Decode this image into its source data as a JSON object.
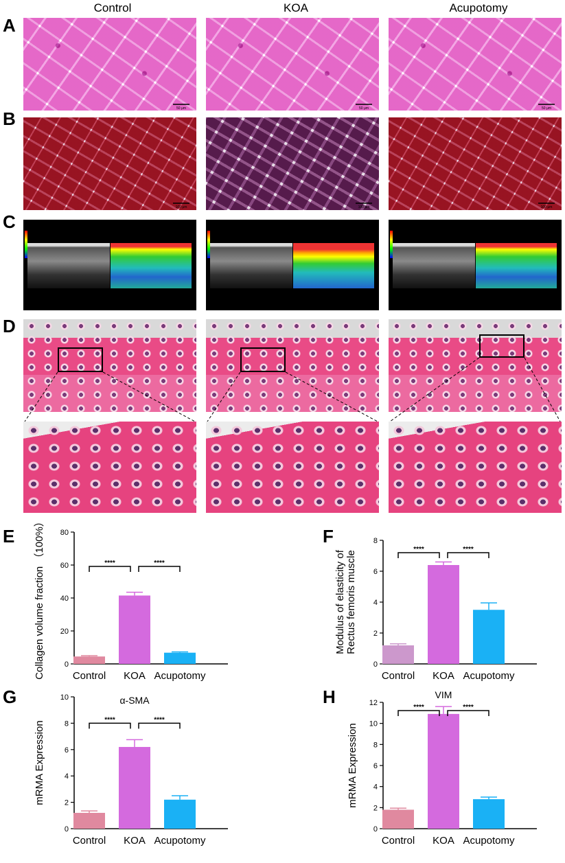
{
  "columns": [
    "Control",
    "KOA",
    "Acupotomy"
  ],
  "panels": [
    "A",
    "B",
    "C",
    "D",
    "E",
    "F",
    "G",
    "H"
  ],
  "scale_labels": {
    "a": "50 μm",
    "b": "100 μm"
  },
  "chart_data": [
    {
      "panel": "E",
      "type": "bar",
      "title": "",
      "categories": [
        "Control",
        "KOA",
        "Acupotomy"
      ],
      "values": [
        4.5,
        41.5,
        6.8
      ],
      "errors": [
        0.5,
        2.0,
        0.5
      ],
      "ylabel": "Collagen volume fraction （100%）",
      "ylim": [
        0,
        80
      ],
      "yticks": [
        0,
        20,
        40,
        60,
        80
      ],
      "colors": [
        "#e0899f",
        "#d46ade",
        "#1ab1f5"
      ],
      "significance": [
        "****",
        "****"
      ]
    },
    {
      "panel": "F",
      "type": "bar",
      "title": "",
      "categories": [
        "Control",
        "KOA",
        "Acupotomy"
      ],
      "values": [
        1.2,
        6.4,
        3.5
      ],
      "errors": [
        0.1,
        0.2,
        0.45
      ],
      "ylabel": "Modulus of elasticity of Rectus femoris muscle",
      "ylabel_lines": [
        "Modulus of elasticity of",
        "Rectus femoris muscle"
      ],
      "ylim": [
        0,
        8
      ],
      "yticks": [
        0,
        2,
        4,
        6,
        8
      ],
      "colors": [
        "#cc98cc",
        "#d46ade",
        "#1ab1f5"
      ],
      "significance": [
        "****",
        "****"
      ]
    },
    {
      "panel": "G",
      "type": "bar",
      "title": "α-SMA",
      "categories": [
        "Control",
        "KOA",
        "Acupotomy"
      ],
      "values": [
        1.2,
        6.2,
        2.2
      ],
      "errors": [
        0.15,
        0.55,
        0.3
      ],
      "ylabel": "mRMA Expression",
      "ylim": [
        0,
        10
      ],
      "yticks": [
        0,
        2,
        4,
        6,
        8,
        10
      ],
      "colors": [
        "#e0899f",
        "#d46ade",
        "#1ab1f5"
      ],
      "significance": [
        "****",
        "****"
      ]
    },
    {
      "panel": "H",
      "type": "bar",
      "title": "VIM",
      "categories": [
        "Control",
        "KOA",
        "Acupotomy"
      ],
      "values": [
        1.8,
        10.9,
        2.8
      ],
      "errors": [
        0.15,
        0.7,
        0.2
      ],
      "ylabel": "mRMA Expression",
      "ylim": [
        0,
        12
      ],
      "yticks": [
        0,
        2,
        4,
        6,
        8,
        10,
        12
      ],
      "colors": [
        "#e0899f",
        "#d46ade",
        "#1ab1f5"
      ],
      "significance": [
        "****",
        "****"
      ]
    }
  ]
}
